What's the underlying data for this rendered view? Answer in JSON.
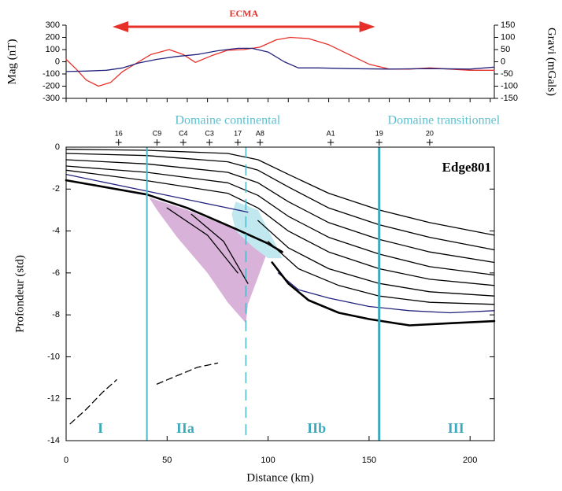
{
  "chart_data": [
    {
      "type": "line",
      "ylabel": "Mag (nT)",
      "y2label": "Gravi (mGals)",
      "xlim": [
        0,
        212
      ],
      "xticks": [
        0,
        10,
        20,
        30,
        40,
        50,
        60,
        70,
        80,
        90,
        100,
        110,
        120,
        130,
        140,
        150,
        160,
        170,
        180,
        190,
        200,
        210
      ],
      "ylim": [
        -300,
        300
      ],
      "yticks": [
        -300,
        -200,
        -100,
        0,
        100,
        200,
        300
      ],
      "y2lim": [
        -150,
        150
      ],
      "y2ticks": [
        -150,
        -100,
        -50,
        0,
        50,
        100,
        150
      ],
      "ecma": {
        "text": "ECMA",
        "x": [
          23,
          153
        ],
        "color": "#e8302a"
      },
      "series": [
        {
          "color": "#e8302a",
          "x": [
            0,
            5,
            10,
            16,
            22,
            28,
            35,
            42,
            51,
            58,
            64,
            72,
            80,
            88,
            96,
            104,
            111,
            120,
            130,
            140,
            150,
            160,
            170,
            180,
            190,
            200,
            212
          ],
          "values": [
            20,
            -60,
            -150,
            -200,
            -170,
            -80,
            -10,
            60,
            100,
            60,
            -5,
            50,
            95,
            100,
            120,
            180,
            200,
            190,
            140,
            60,
            -20,
            -60,
            -60,
            -50,
            -60,
            -70,
            -70
          ]
        },
        {
          "color": "#23237e",
          "axis": "y2",
          "x": [
            0,
            10,
            20,
            28,
            36,
            45,
            55,
            65,
            75,
            85,
            92,
            100,
            108,
            115,
            125,
            140,
            160,
            180,
            200,
            212
          ],
          "values": [
            -40,
            -38,
            -35,
            -25,
            -5,
            10,
            22,
            30,
            45,
            55,
            55,
            40,
            0,
            -25,
            -25,
            -28,
            -30,
            -28,
            -30,
            -22
          ]
        }
      ]
    },
    {
      "type": "section",
      "xlabel": "Distance (km)",
      "ylabel": "Profondeur (std)",
      "label": "Edge801",
      "xlim": [
        0,
        212
      ],
      "xticks": [
        0,
        50,
        100,
        150,
        200
      ],
      "ylim": [
        -14,
        0
      ],
      "yticks": [
        -14,
        -12,
        -10,
        -8,
        -6,
        -4,
        -2,
        0
      ],
      "areas": [
        {
          "color": "#d8b2d8",
          "x": [
            41,
            60,
            83,
            100,
            95,
            90,
            89,
            80,
            70,
            55,
            45
          ],
          "values": [
            -2.4,
            -3.0,
            -3.9,
            -4.9,
            -6.2,
            -7.5,
            -8.4,
            -7.4,
            -6.0,
            -4.3,
            -3.0
          ]
        },
        {
          "color": "#c2e8ef",
          "x": [
            84,
            95,
            103,
            107,
            100,
            93,
            84,
            82
          ],
          "values": [
            -2.6,
            -3.0,
            -4.5,
            -5.3,
            -5.3,
            -4.8,
            -4.0,
            -3.2
          ]
        }
      ],
      "horizons": [
        {
          "color": "#000000",
          "style": "normal",
          "x": [
            0,
            40,
            80,
            95,
            110,
            130,
            155,
            180,
            212
          ],
          "values": [
            -0.1,
            -0.15,
            -0.3,
            -0.6,
            -1.3,
            -2.2,
            -3.0,
            -3.6,
            -4.2
          ]
        },
        {
          "color": "#000000",
          "style": "normal",
          "x": [
            0,
            40,
            80,
            95,
            110,
            130,
            155,
            180,
            212
          ],
          "values": [
            -0.3,
            -0.4,
            -0.7,
            -1.1,
            -1.9,
            -2.9,
            -3.7,
            -4.3,
            -4.9
          ]
        },
        {
          "color": "#000000",
          "style": "normal",
          "x": [
            0,
            40,
            80,
            95,
            110,
            130,
            155,
            180,
            212
          ],
          "values": [
            -0.6,
            -0.8,
            -1.2,
            -1.7,
            -2.6,
            -3.6,
            -4.4,
            -5.0,
            -5.5
          ]
        },
        {
          "color": "#000000",
          "style": "normal",
          "x": [
            0,
            40,
            80,
            95,
            110,
            130,
            155,
            180,
            212
          ],
          "values": [
            -0.9,
            -1.2,
            -1.7,
            -2.3,
            -3.3,
            -4.3,
            -5.1,
            -5.7,
            -6.1
          ]
        },
        {
          "color": "#000000",
          "style": "normal",
          "x": [
            0,
            40,
            80,
            95,
            110,
            130,
            155,
            180,
            212
          ],
          "values": [
            -1.1,
            -1.6,
            -2.2,
            -2.9,
            -4.0,
            -5.0,
            -5.8,
            -6.3,
            -6.6
          ]
        },
        {
          "color": "#000000",
          "style": "normal",
          "x": [
            95,
            110,
            130,
            155,
            180,
            212
          ],
          "values": [
            -3.5,
            -4.8,
            -5.8,
            -6.5,
            -6.9,
            -7.1
          ]
        },
        {
          "color": "#000000",
          "style": "normal",
          "x": [
            100,
            115,
            135,
            155,
            180,
            212
          ],
          "values": [
            -4.5,
            -5.8,
            -6.6,
            -7.1,
            -7.4,
            -7.5
          ]
        },
        {
          "color": "#23237e",
          "style": "normal",
          "x": [
            0,
            40,
            60,
            80,
            90
          ],
          "values": [
            -1.3,
            -2.1,
            -2.5,
            -2.9,
            -3.1
          ]
        },
        {
          "color": "#23237e",
          "style": "normal",
          "x": [
            105,
            115,
            130,
            150,
            170,
            190,
            212
          ],
          "values": [
            -6.0,
            -6.8,
            -7.2,
            -7.6,
            -7.8,
            -7.9,
            -7.8
          ]
        },
        {
          "color": "#000000",
          "style": "bold",
          "x": [
            0,
            40,
            60,
            84,
            100,
            107
          ],
          "values": [
            -1.58,
            -2.26,
            -2.9,
            -3.9,
            -4.6,
            -5.0
          ]
        },
        {
          "color": "#000000",
          "style": "bold",
          "x": [
            102,
            110,
            120,
            135,
            150,
            170,
            190,
            212
          ],
          "values": [
            -5.5,
            -6.5,
            -7.3,
            -7.9,
            -8.2,
            -8.5,
            -8.4,
            -8.3
          ]
        },
        {
          "color": "#000000",
          "style": "normal",
          "x": [
            50,
            70,
            85
          ],
          "values": [
            -2.9,
            -4.2,
            -6.0
          ]
        },
        {
          "color": "#000000",
          "style": "normal",
          "x": [
            62,
            78,
            90
          ],
          "values": [
            -3.2,
            -4.5,
            -6.5
          ]
        },
        {
          "color": "#000000",
          "style": "dashed",
          "x": [
            2,
            10,
            18,
            25
          ],
          "values": [
            -13.2,
            -12.5,
            -11.7,
            -11.1
          ]
        },
        {
          "color": "#000000",
          "style": "dashed",
          "x": [
            45,
            55,
            65,
            75
          ],
          "values": [
            -11.3,
            -10.9,
            -10.5,
            -10.3
          ]
        }
      ],
      "boundaries": [
        {
          "x": 40,
          "color": "#4fb8c8",
          "style": "solid"
        },
        {
          "x": 89,
          "color": "#4fb8c8",
          "style": "dashed"
        },
        {
          "x": 155,
          "color": "#3aa9bc",
          "style": "bold"
        }
      ],
      "wells": [
        {
          "label": "16",
          "x": 26
        },
        {
          "label": "C9",
          "x": 45
        },
        {
          "label": "C4",
          "x": 58
        },
        {
          "label": "C3",
          "x": 71
        },
        {
          "label": "17",
          "x": 85
        },
        {
          "label": "A8",
          "x": 96
        },
        {
          "label": "A1",
          "x": 131
        },
        {
          "label": "19",
          "x": 155
        },
        {
          "label": "20",
          "x": 180
        }
      ],
      "annotations": [
        {
          "text": "Domaine continental",
          "x": 80
        },
        {
          "text": "Domaine transitionnel",
          "x": 187
        }
      ],
      "zones": [
        {
          "label": "I",
          "x": 17
        },
        {
          "label": "IIa",
          "x": 59
        },
        {
          "label": "IIb",
          "x": 124
        },
        {
          "label": "III",
          "x": 193
        }
      ]
    }
  ]
}
